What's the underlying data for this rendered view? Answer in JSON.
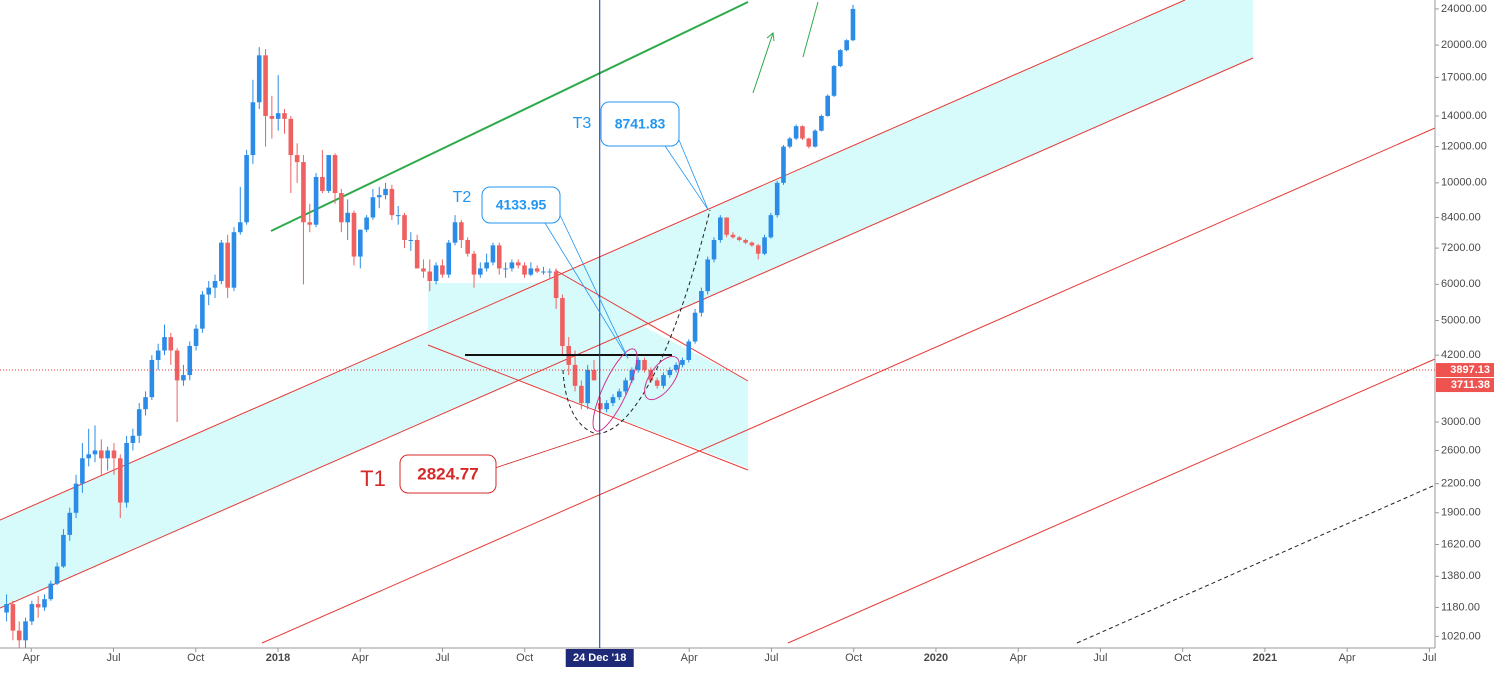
{
  "chart_data": {
    "type": "candlestick",
    "up_color": "#2a8ce6",
    "down_color": "#ef6161",
    "log_scale": true,
    "xlim": [
      2017.155,
      2021.517
    ],
    "ylim": [
      962,
      25100
    ],
    "xticks": [
      {
        "value": 2017.25,
        "label": "Apr"
      },
      {
        "value": 2017.5,
        "label": "Jul"
      },
      {
        "value": 2017.75,
        "label": "Oct"
      },
      2018,
      {
        "value": 2018.25,
        "label": "Apr"
      },
      {
        "value": 2018.5,
        "label": "Jul"
      },
      {
        "value": 2018.75,
        "label": "Oct"
      },
      {
        "value": 2019.25,
        "label": "Apr"
      },
      {
        "value": 2019.5,
        "label": "Jul"
      },
      {
        "value": 2019.75,
        "label": "Oct"
      },
      2020,
      {
        "value": 2020.25,
        "label": "Apr"
      },
      {
        "value": 2020.5,
        "label": "Jul"
      },
      {
        "value": 2020.75,
        "label": "Oct"
      },
      2021,
      {
        "value": 2021.25,
        "label": "Apr"
      },
      {
        "value": 2021.5,
        "label": "Jul"
      }
    ],
    "yticks": [
      {
        "value": 1020,
        "label": "1020.00"
      },
      {
        "value": 1180,
        "label": "1180.00"
      },
      {
        "value": 1380,
        "label": "1380.00"
      },
      {
        "value": 1620,
        "label": "1620.00"
      },
      {
        "value": 1900,
        "label": "1900.00"
      },
      {
        "value": 2200,
        "label": "2200.00"
      },
      {
        "value": 2600,
        "label": "2600.00"
      },
      {
        "value": 3000,
        "label": "3000.00"
      },
      {
        "value": 4200,
        "label": "4200.00"
      },
      {
        "value": 5000,
        "label": "5000.00"
      },
      {
        "value": 6000,
        "label": "6000.00"
      },
      {
        "value": 7200,
        "label": "7200.00"
      },
      {
        "value": 8400,
        "label": "8400.00"
      },
      {
        "value": 10000,
        "label": "10000.00"
      },
      {
        "value": 12000,
        "label": "12000.00"
      },
      {
        "value": 14000,
        "label": "14000.00"
      },
      {
        "value": 17000,
        "label": "17000.00"
      },
      {
        "value": 20000,
        "label": "20000.00"
      },
      {
        "value": 24000,
        "label": "24000.00"
      }
    ],
    "crosshair": {
      "value": 2018.978,
      "label": "24 Dec '18"
    },
    "price_labels": [
      3897.13,
      3711.38
    ],
    "callouts": [
      {
        "name": "T1",
        "value": 2824.77
      },
      {
        "name": "T2",
        "value": 4133.95
      },
      {
        "name": "T3",
        "value": 8741.83
      }
    ],
    "candles": [
      [
        2017.175,
        1150,
        1260,
        1100,
        1200
      ],
      [
        2017.1942,
        1200,
        1220,
        1000,
        1050
      ],
      [
        2017.2134,
        1050,
        1100,
        900,
        1000
      ],
      [
        2017.2326,
        1000,
        1120,
        960,
        1100
      ],
      [
        2017.2518,
        1100,
        1220,
        1080,
        1200
      ],
      [
        2017.271,
        1200,
        1250,
        1120,
        1180
      ],
      [
        2017.2902,
        1180,
        1260,
        1160,
        1230
      ],
      [
        2017.3094,
        1230,
        1350,
        1220,
        1330
      ],
      [
        2017.3286,
        1330,
        1480,
        1320,
        1450
      ],
      [
        2017.3478,
        1450,
        1750,
        1440,
        1700
      ],
      [
        2017.367,
        1700,
        1950,
        1650,
        1900
      ],
      [
        2017.3862,
        1900,
        2300,
        1850,
        2200
      ],
      [
        2017.4054,
        2200,
        2700,
        2100,
        2500
      ],
      [
        2017.4246,
        2500,
        2900,
        2400,
        2550
      ],
      [
        2017.4438,
        2550,
        2950,
        2450,
        2600
      ],
      [
        2017.463,
        2600,
        2750,
        2300,
        2500
      ],
      [
        2017.4822,
        2500,
        2650,
        2350,
        2600
      ],
      [
        2017.5014,
        2600,
        2700,
        2300,
        2500
      ],
      [
        2017.5206,
        2500,
        2550,
        1850,
        2000
      ],
      [
        2017.5398,
        2000,
        2800,
        1950,
        2700
      ],
      [
        2017.559,
        2700,
        2900,
        2600,
        2800
      ],
      [
        2017.5782,
        2800,
        3300,
        2700,
        3200
      ],
      [
        2017.5974,
        3200,
        3500,
        3100,
        3400
      ],
      [
        2017.6166,
        3400,
        4200,
        3350,
        4100
      ],
      [
        2017.6358,
        4100,
        4450,
        3900,
        4300
      ],
      [
        2017.655,
        4300,
        4900,
        4200,
        4600
      ],
      [
        2017.6742,
        4600,
        4700,
        4000,
        4300
      ],
      [
        2017.6934,
        4300,
        4350,
        3000,
        3700
      ],
      [
        2017.7126,
        3700,
        4000,
        3600,
        3800
      ],
      [
        2017.7318,
        3800,
        4500,
        3700,
        4400
      ],
      [
        2017.751,
        4400,
        4900,
        4300,
        4800
      ],
      [
        2017.7702,
        4800,
        5800,
        4700,
        5700
      ],
      [
        2017.7894,
        5700,
        6100,
        5400,
        5900
      ],
      [
        2017.8086,
        5900,
        6300,
        5600,
        6100
      ],
      [
        2017.8278,
        6100,
        7500,
        6000,
        7400
      ],
      [
        2017.847,
        7400,
        7700,
        5600,
        5900
      ],
      [
        2017.8662,
        5900,
        8000,
        5800,
        7800
      ],
      [
        2017.8854,
        7800,
        9800,
        7700,
        8200
      ],
      [
        2017.9046,
        8200,
        11800,
        8100,
        11500
      ],
      [
        2017.9238,
        11500,
        16800,
        11000,
        15000
      ],
      [
        2017.943,
        15000,
        19800,
        14500,
        19000
      ],
      [
        2017.9622,
        19000,
        19600,
        12000,
        14000
      ],
      [
        2017.9814,
        14000,
        15500,
        12500,
        13800
      ],
      [
        2018.0006,
        13800,
        17200,
        13000,
        14200
      ],
      [
        2018.0198,
        14200,
        14500,
        12800,
        13800
      ],
      [
        2018.039,
        13800,
        14000,
        9500,
        11500
      ],
      [
        2018.0582,
        11500,
        12200,
        10000,
        11100
      ],
      [
        2018.0774,
        11100,
        11500,
        6000,
        8200
      ],
      [
        2018.0966,
        8200,
        9000,
        7800,
        8100
      ],
      [
        2018.1158,
        8100,
        10500,
        8000,
        10300
      ],
      [
        2018.135,
        10300,
        11800,
        9500,
        9600
      ],
      [
        2018.1542,
        9600,
        11500,
        9500,
        11500
      ],
      [
        2018.1734,
        11500,
        11600,
        9000,
        9500
      ],
      [
        2018.1926,
        9500,
        9700,
        7800,
        8200
      ],
      [
        2018.2118,
        8200,
        9200,
        7500,
        8600
      ],
      [
        2018.231,
        8600,
        8700,
        6600,
        6900
      ],
      [
        2018.2502,
        6900,
        7900,
        6500,
        7900
      ],
      [
        2018.2694,
        7900,
        8500,
        7800,
        8400
      ],
      [
        2018.2886,
        8400,
        9700,
        8300,
        9300
      ],
      [
        2018.3078,
        9300,
        9800,
        8800,
        9400
      ],
      [
        2018.327,
        9400,
        10000,
        9200,
        9700
      ],
      [
        2018.3462,
        9700,
        9900,
        8300,
        8500
      ],
      [
        2018.3654,
        8500,
        8900,
        8100,
        8500
      ],
      [
        2018.3846,
        8500,
        8600,
        7200,
        7500
      ],
      [
        2018.4038,
        7500,
        7800,
        7100,
        7500
      ],
      [
        2018.423,
        7500,
        7700,
        6500,
        6500
      ],
      [
        2018.4422,
        6500,
        6800,
        6200,
        6400
      ],
      [
        2018.4614,
        6400,
        6800,
        5800,
        6100
      ],
      [
        2018.4806,
        6100,
        6700,
        6000,
        6600
      ],
      [
        2018.4998,
        6600,
        6800,
        6200,
        6300
      ],
      [
        2018.519,
        6300,
        7500,
        6200,
        7400
      ],
      [
        2018.5382,
        7400,
        8500,
        7300,
        8200
      ],
      [
        2018.5574,
        8200,
        8300,
        7200,
        7500
      ],
      [
        2018.5766,
        7500,
        7600,
        6900,
        7000
      ],
      [
        2018.5958,
        7000,
        7100,
        5900,
        6300
      ],
      [
        2018.615,
        6300,
        6700,
        6200,
        6500
      ],
      [
        2018.6342,
        6500,
        7000,
        6400,
        6700
      ],
      [
        2018.6534,
        6700,
        7400,
        6600,
        7300
      ],
      [
        2018.6726,
        7300,
        7400,
        6300,
        6500
      ],
      [
        2018.6918,
        6500,
        6700,
        6200,
        6500
      ],
      [
        2018.711,
        6500,
        6800,
        6400,
        6700
      ],
      [
        2018.7302,
        6700,
        6800,
        6500,
        6600
      ],
      [
        2018.7494,
        6600,
        6700,
        6200,
        6300
      ],
      [
        2018.7686,
        6300,
        6700,
        6250,
        6500
      ],
      [
        2018.7878,
        6500,
        6600,
        6350,
        6400
      ],
      [
        2018.807,
        6400,
        6550,
        6300,
        6400
      ],
      [
        2018.8262,
        6400,
        6500,
        6200,
        6400
      ],
      [
        2018.8454,
        6400,
        6500,
        5300,
        5600
      ],
      [
        2018.8646,
        5600,
        5700,
        4200,
        4400
      ],
      [
        2018.8838,
        4400,
        4600,
        3800,
        4000
      ],
      [
        2018.903,
        4000,
        4300,
        3500,
        3600
      ],
      [
        2018.9222,
        3600,
        3700,
        3200,
        3300
      ],
      [
        2018.9414,
        3300,
        4000,
        3200,
        3900
      ],
      [
        2018.9606,
        3900,
        4100,
        3700,
        3700
      ],
      [
        2018.9798,
        3300,
        3400,
        3150,
        3200
      ],
      [
        2018.999,
        3200,
        3350,
        3150,
        3300
      ],
      [
        2019.0182,
        3300,
        3450,
        3250,
        3400
      ],
      [
        2019.0374,
        3400,
        3550,
        3350,
        3500
      ],
      [
        2019.0566,
        3500,
        3750,
        3450,
        3700
      ],
      [
        2019.0758,
        3700,
        3950,
        3650,
        3900
      ],
      [
        2019.095,
        3900,
        4150,
        3850,
        4100
      ],
      [
        2019.1142,
        4100,
        4150,
        3850,
        3900
      ],
      [
        2019.1334,
        3900,
        3950,
        3650,
        3700
      ],
      [
        2019.1526,
        3700,
        3750,
        3550,
        3600
      ],
      [
        2019.1718,
        3600,
        3850,
        3550,
        3800
      ],
      [
        2019.191,
        3800,
        3950,
        3750,
        3900
      ],
      [
        2019.2102,
        3900,
        4050,
        3850,
        4000
      ],
      [
        2019.2294,
        4000,
        4150,
        3950,
        4100
      ],
      [
        2019.2486,
        4100,
        4550,
        4050,
        4500
      ],
      [
        2019.2678,
        4500,
        5300,
        4450,
        5200
      ],
      [
        2019.287,
        5200,
        5900,
        5100,
        5800
      ],
      [
        2019.3062,
        5800,
        6900,
        5700,
        6800
      ],
      [
        2019.3254,
        6800,
        7600,
        6700,
        7500
      ],
      [
        2019.3446,
        7500,
        8500,
        7400,
        8400
      ],
      [
        2019.3638,
        8400,
        8400,
        7600,
        7700
      ],
      [
        2019.383,
        7700,
        7800,
        7550,
        7600
      ],
      [
        2019.4022,
        7600,
        7650,
        7450,
        7500
      ],
      [
        2019.4214,
        7500,
        7550,
        7350,
        7400
      ],
      [
        2019.4406,
        7400,
        7450,
        7250,
        7300
      ],
      [
        2019.4598,
        7300,
        7350,
        6800,
        7000
      ],
      [
        2019.479,
        7000,
        7700,
        6950,
        7600
      ],
      [
        2019.4982,
        7600,
        8600,
        7550,
        8500
      ],
      [
        2019.5174,
        8500,
        10100,
        8400,
        10000
      ],
      [
        2019.5366,
        10000,
        12100,
        9900,
        12000
      ],
      [
        2019.5558,
        12000,
        12600,
        11900,
        12500
      ],
      [
        2019.575,
        12500,
        13400,
        12400,
        13300
      ],
      [
        2019.5942,
        13300,
        13350,
        12400,
        12500
      ],
      [
        2019.6134,
        12500,
        12550,
        11900,
        12000
      ],
      [
        2019.6326,
        12000,
        13100,
        11950,
        13000
      ],
      [
        2019.6518,
        13000,
        14100,
        12950,
        14000
      ],
      [
        2019.671,
        14000,
        15600,
        13950,
        15500
      ],
      [
        2019.6902,
        15500,
        18100,
        15400,
        18000
      ],
      [
        2019.7094,
        18000,
        19600,
        17900,
        19500
      ],
      [
        2019.7286,
        19500,
        20600,
        19400,
        20500
      ],
      [
        2019.7478,
        20500,
        24500,
        20400,
        24000
      ]
    ]
  }
}
